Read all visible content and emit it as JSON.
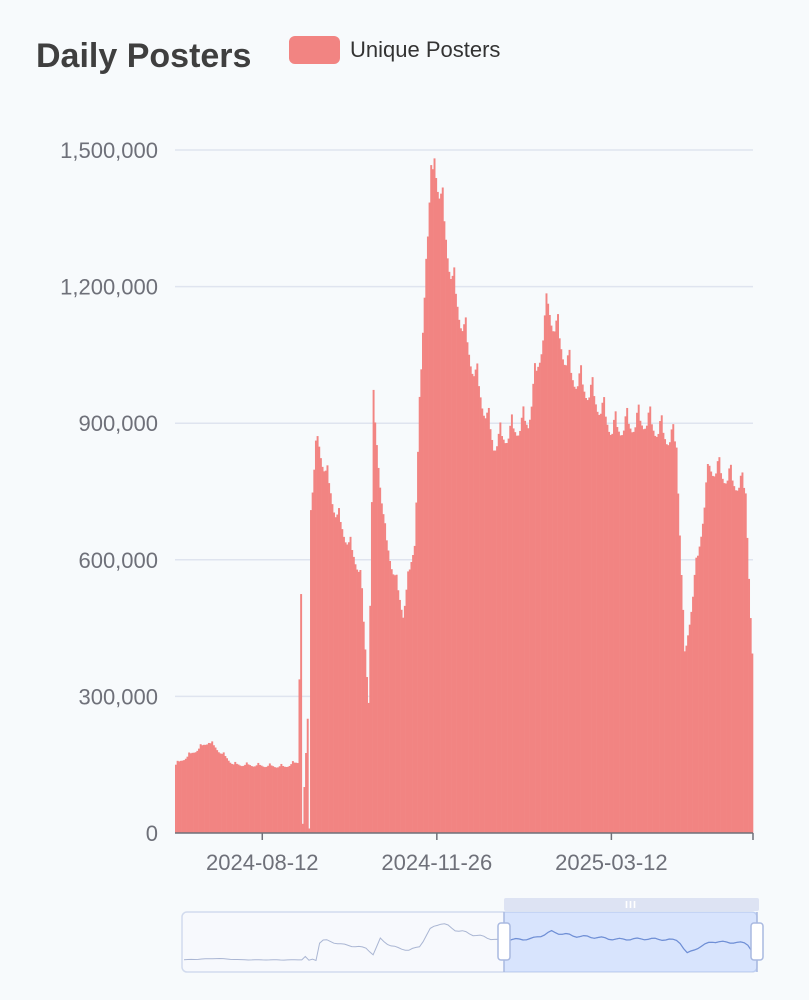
{
  "chart_data": {
    "type": "bar",
    "title": "Daily Posters",
    "series": [
      {
        "name": "Unique Posters",
        "color": "#f28482"
      }
    ],
    "legend_position": "top",
    "x_axis": {
      "type": "date",
      "range": [
        "2024-06-20",
        "2025-06-06"
      ],
      "tick_labels": [
        "2024-08-12",
        "2024-11-26",
        "2025-03-12"
      ]
    },
    "y_axis": {
      "range": [
        0,
        1500000
      ],
      "tick_labels": [
        "0",
        "300,000",
        "600,000",
        "900,000",
        "1,200,000",
        "1,500,000"
      ]
    },
    "grid": true,
    "key_points": [
      {
        "date": "2024-06-20",
        "value": 150000
      },
      {
        "date": "2024-07-10",
        "value": 200000
      },
      {
        "date": "2024-07-25",
        "value": 150000
      },
      {
        "date": "2024-08-25",
        "value": 145000
      },
      {
        "date": "2024-09-02",
        "value": 155000
      },
      {
        "date": "2024-09-04",
        "value": 530000
      },
      {
        "date": "2024-09-05",
        "value": 20000
      },
      {
        "date": "2024-09-08",
        "value": 250000
      },
      {
        "date": "2024-09-09",
        "value": 10000
      },
      {
        "date": "2024-09-10",
        "value": 720000
      },
      {
        "date": "2024-09-14",
        "value": 860000
      },
      {
        "date": "2024-09-25",
        "value": 700000
      },
      {
        "date": "2024-10-10",
        "value": 570000
      },
      {
        "date": "2024-10-15",
        "value": 290000
      },
      {
        "date": "2024-10-18",
        "value": 930000
      },
      {
        "date": "2024-10-25",
        "value": 650000
      },
      {
        "date": "2024-11-05",
        "value": 480000
      },
      {
        "date": "2024-11-12",
        "value": 640000
      },
      {
        "date": "2024-11-19",
        "value": 1280000
      },
      {
        "date": "2024-11-24",
        "value": 1480000
      },
      {
        "date": "2024-12-05",
        "value": 1200000
      },
      {
        "date": "2024-12-15",
        "value": 1050000
      },
      {
        "date": "2024-12-30",
        "value": 850000
      },
      {
        "date": "2025-01-20",
        "value": 900000
      },
      {
        "date": "2025-02-01",
        "value": 1150000
      },
      {
        "date": "2025-02-15",
        "value": 1000000
      },
      {
        "date": "2025-03-01",
        "value": 950000
      },
      {
        "date": "2025-03-12",
        "value": 880000
      },
      {
        "date": "2025-04-01",
        "value": 900000
      },
      {
        "date": "2025-04-20",
        "value": 850000
      },
      {
        "date": "2025-04-25",
        "value": 380000
      },
      {
        "date": "2025-05-10",
        "value": 800000
      },
      {
        "date": "2025-06-01",
        "value": 750000
      },
      {
        "date": "2025-06-05",
        "value": 380000
      }
    ],
    "data_zoom": {
      "start_percent": 56,
      "end_percent": 100
    }
  }
}
